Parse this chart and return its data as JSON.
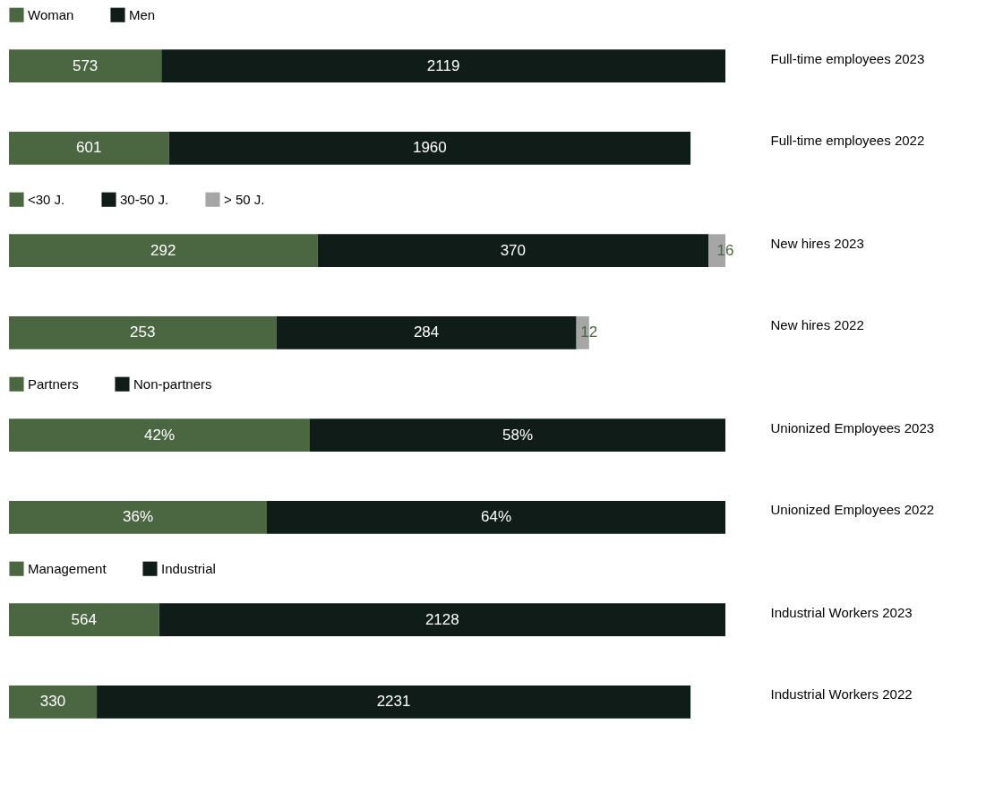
{
  "chart_data": [
    {
      "type": "bar",
      "orientation": "horizontal",
      "stacked": true,
      "legend": "top left",
      "data_labels": true,
      "categories": [
        "Full-time employees 2023",
        "Full-time employees 2022"
      ],
      "series": [
        {
          "name": "Woman",
          "color": "#4a6741",
          "values": [
            573,
            601
          ]
        },
        {
          "name": "Men",
          "color": "#0f1c17",
          "values": [
            2119,
            1960
          ]
        }
      ]
    },
    {
      "type": "bar",
      "orientation": "horizontal",
      "stacked": true,
      "legend": "top left",
      "data_labels": true,
      "categories": [
        "New hires 2023",
        "New hires 2022"
      ],
      "series": [
        {
          "name": "<30 J.",
          "color": "#4a6741",
          "values": [
            292,
            253
          ]
        },
        {
          "name": "30-50 J.",
          "color": "#0f1c17",
          "values": [
            370,
            284
          ]
        },
        {
          "name": "> 50 J.",
          "color": "#a6a6a6",
          "values": [
            16,
            12
          ]
        }
      ]
    },
    {
      "type": "bar",
      "orientation": "horizontal",
      "stacked": true,
      "legend": "top left",
      "categories": [
        "Unionized Employees 2023",
        "Unionized Employees 2022"
      ],
      "series": [
        {
          "name": "Partners",
          "color": "#4a6741",
          "values": [
            42,
            36
          ],
          "value_labels": [
            "42%",
            "36%"
          ]
        },
        {
          "name": "Non-partners",
          "color": "#0f1c17",
          "values": [
            58,
            64
          ],
          "value_labels": [
            "58%",
            "64%"
          ]
        }
      ]
    },
    {
      "type": "bar",
      "orientation": "horizontal",
      "stacked": true,
      "legend": "top left",
      "data_labels": true,
      "categories": [
        "Industrial Workers 2023",
        "Industrial Workers 2022"
      ],
      "series": [
        {
          "name": "Management",
          "color": "#4a6741",
          "values": [
            564,
            330
          ]
        },
        {
          "name": "Industrial",
          "color": "#0f1c17",
          "values": [
            2128,
            2231
          ]
        }
      ]
    }
  ]
}
